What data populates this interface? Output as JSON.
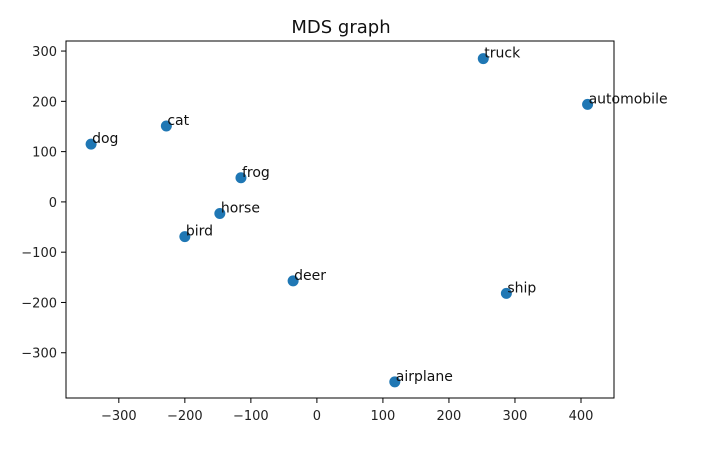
{
  "chart_data": {
    "type": "scatter",
    "title": "MDS graph",
    "xlabel": "",
    "ylabel": "",
    "xlim": [
      -380,
      450
    ],
    "ylim": [
      -390,
      320
    ],
    "xticks": [
      -300,
      -200,
      -100,
      0,
      100,
      200,
      300,
      400
    ],
    "yticks": [
      -300,
      -200,
      -100,
      0,
      100,
      200,
      300
    ],
    "xtick_labels": [
      "−300",
      "−200",
      "−100",
      "0",
      "100",
      "200",
      "300",
      "400"
    ],
    "ytick_labels": [
      "−300",
      "−200",
      "−100",
      "0",
      "100",
      "200",
      "300"
    ],
    "grid": false,
    "marker_color": "#1f77b4",
    "points": [
      {
        "label": "truck",
        "x": 252,
        "y": 285
      },
      {
        "label": "automobile",
        "x": 410,
        "y": 194
      },
      {
        "label": "cat",
        "x": -228,
        "y": 151
      },
      {
        "label": "dog",
        "x": -342,
        "y": 115
      },
      {
        "label": "frog",
        "x": -115,
        "y": 48
      },
      {
        "label": "horse",
        "x": -147,
        "y": -23
      },
      {
        "label": "bird",
        "x": -200,
        "y": -69
      },
      {
        "label": "deer",
        "x": -36,
        "y": -157
      },
      {
        "label": "ship",
        "x": 287,
        "y": -182
      },
      {
        "label": "airplane",
        "x": 118,
        "y": -358
      }
    ]
  }
}
